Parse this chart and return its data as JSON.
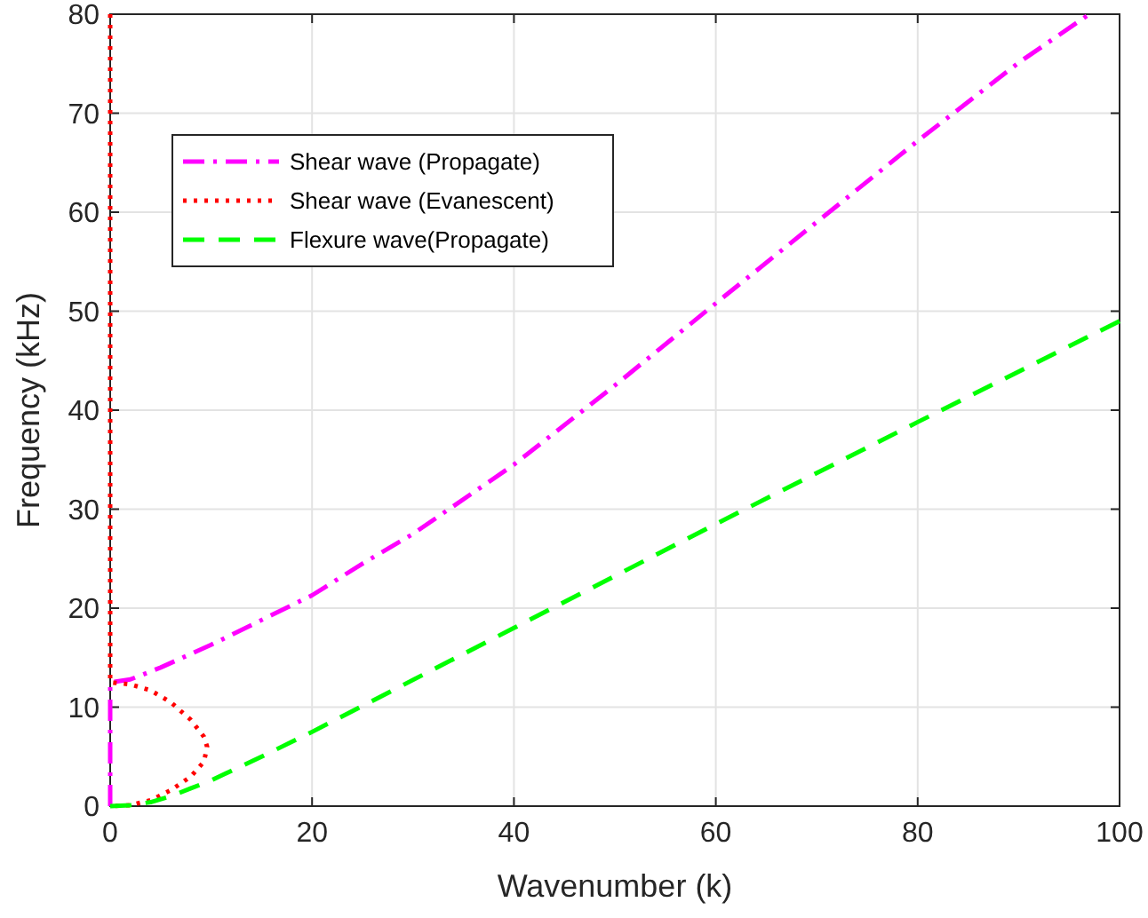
{
  "chart_data": {
    "type": "line",
    "xlabel": "Wavenumber (k)",
    "ylabel": "Frequency (kHz)",
    "xlim": [
      0,
      100
    ],
    "ylim": [
      0,
      80
    ],
    "xticks": [
      0,
      20,
      40,
      60,
      80,
      100
    ],
    "yticks": [
      0,
      10,
      20,
      30,
      40,
      50,
      60,
      70,
      80
    ],
    "grid": true,
    "legend": "top left",
    "series": [
      {
        "name": "Shear wave (Propagate)",
        "color": "#ff00ff",
        "line_style": "dashdot",
        "x": [
          0,
          0,
          2,
          5,
          10,
          15,
          20,
          25,
          30,
          40,
          50,
          60,
          70,
          80,
          90,
          97
        ],
        "values": [
          0,
          12.5,
          12.8,
          14,
          16.3,
          18.8,
          21.3,
          24.5,
          27.5,
          34.5,
          42.5,
          50.8,
          59,
          67.2,
          75.1,
          80
        ]
      },
      {
        "name": "Shear wave (Evanescent)",
        "color": "#ff0000",
        "line_style": "dotted",
        "x": [
          0,
          0,
          2,
          4,
          6,
          8,
          9.3,
          9.6,
          9.3,
          8,
          6,
          4,
          2,
          0
        ],
        "values": [
          80,
          12.5,
          12.3,
          11.7,
          10.5,
          8.7,
          7,
          6,
          4.5,
          3,
          1.6,
          0.6,
          0.1,
          0
        ]
      },
      {
        "name": "Flexure wave(Propagate)",
        "color": "#00ff00",
        "line_style": "dashed",
        "x": [
          0,
          2,
          4,
          6,
          8,
          10,
          15,
          20,
          40,
          60,
          80,
          100
        ],
        "values": [
          0,
          0.1,
          0.4,
          1,
          1.8,
          2.6,
          5,
          7.5,
          18,
          28.5,
          38.8,
          49
        ]
      }
    ]
  }
}
